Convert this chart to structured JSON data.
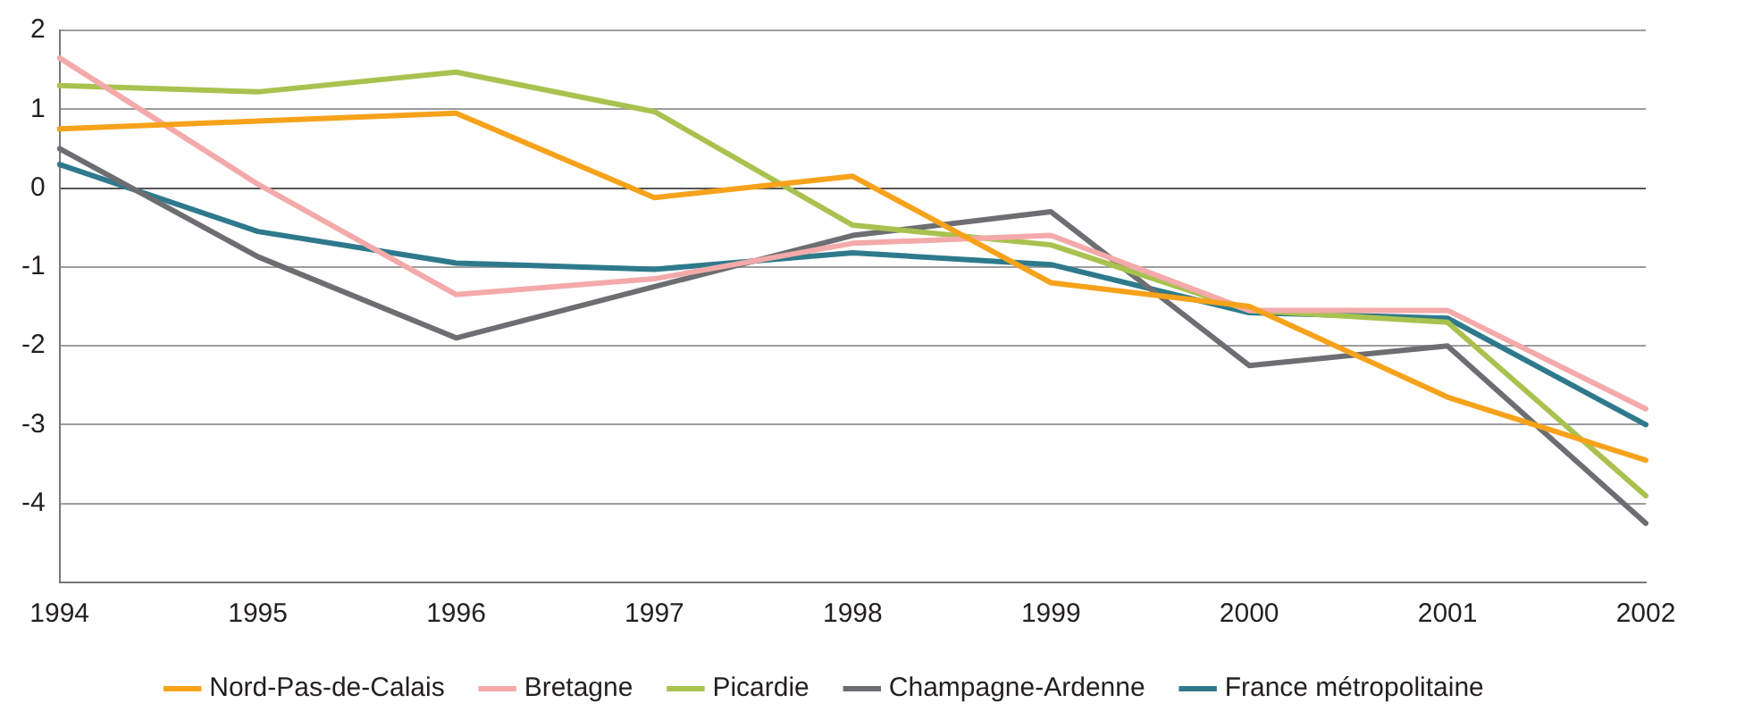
{
  "chart_data": {
    "type": "line",
    "categories": [
      "1994",
      "1995",
      "1996",
      "1997",
      "1998",
      "1999",
      "2000",
      "2001",
      "2002"
    ],
    "ylim": [
      -5,
      2
    ],
    "yticks": [
      -4,
      -3,
      -2,
      -1,
      0,
      1,
      2
    ],
    "grid": "y",
    "legend": "bottom",
    "marker": "none",
    "line_style": "solid",
    "series": [
      {
        "name": "Nord-Pas-de-Calais",
        "color": "#f7a21b",
        "values": [
          0.75,
          0.85,
          0.95,
          -0.12,
          0.15,
          -1.2,
          -1.5,
          -2.65,
          -3.45
        ]
      },
      {
        "name": "Bretagne",
        "color": "#f4aaaa",
        "values": [
          1.65,
          0.05,
          -1.35,
          -1.15,
          -0.7,
          -0.6,
          -1.55,
          -1.55,
          -2.8
        ]
      },
      {
        "name": "Picardie",
        "color": "#a9c24f",
        "values": [
          1.3,
          1.22,
          1.47,
          0.97,
          -0.47,
          -0.72,
          -1.55,
          -1.7,
          -3.9
        ]
      },
      {
        "name": "Champagne-Ardenne",
        "color": "#6d6e71",
        "values": [
          0.5,
          -0.87,
          -1.9,
          -1.25,
          -0.6,
          -0.3,
          -2.25,
          -2.0,
          -4.25
        ]
      },
      {
        "name": "France métropolitaine",
        "color": "#2e7a8c",
        "values": [
          0.3,
          -0.55,
          -0.95,
          -1.03,
          -0.82,
          -0.97,
          -1.58,
          -1.65,
          -3.0
        ]
      }
    ]
  }
}
